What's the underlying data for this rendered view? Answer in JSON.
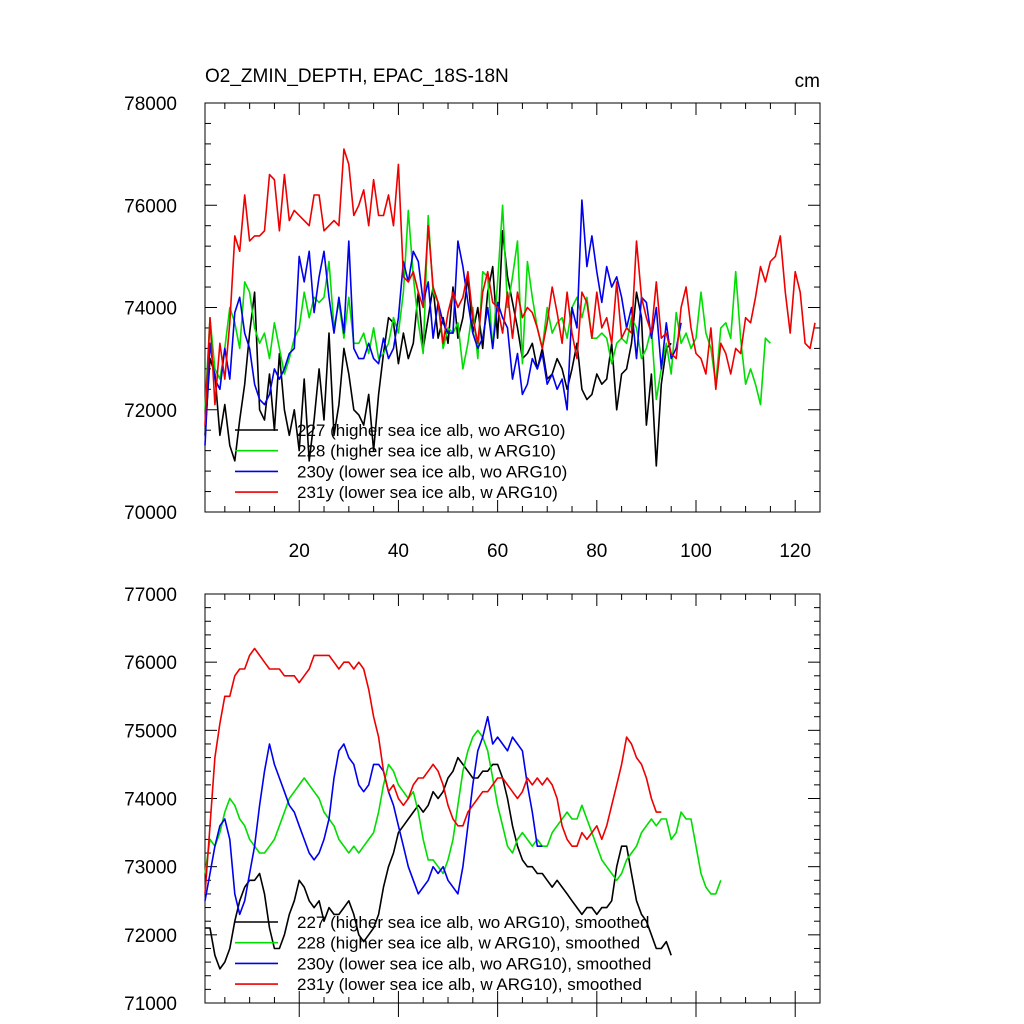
{
  "chart_data": [
    {
      "type": "line",
      "title": "O2_ZMIN_DEPTH, EPAC_18S-18N",
      "units": "cm",
      "xlim": [
        1,
        125
      ],
      "ylim": [
        70000,
        78000
      ],
      "x_ticks": [
        20,
        40,
        60,
        80,
        100,
        120
      ],
      "y_ticks": [
        70000,
        72000,
        74000,
        76000,
        78000
      ],
      "legend_position": "lower-left",
      "series": [
        {
          "name": "227 (higher sea ice alb, wo ARG10)",
          "color": "#000000",
          "values": [
            71500,
            73000,
            72700,
            71500,
            72100,
            71300,
            71000,
            71800,
            72500,
            73500,
            74300,
            72000,
            71800,
            72700,
            71600,
            73100,
            72000,
            71500,
            72000,
            71200,
            72600,
            71000,
            71800,
            72800,
            71800,
            73500,
            71500,
            72100,
            73200,
            72700,
            72000,
            71900,
            71700,
            72300,
            71200,
            72300,
            73100,
            73800,
            73700,
            72900,
            73500,
            73000,
            73300,
            74300,
            73200,
            73800,
            74400,
            73400,
            73800,
            73300,
            74400,
            73400,
            73800,
            74600,
            73500,
            74000,
            73200,
            74300,
            74800,
            73400,
            75500,
            74600,
            74100,
            73600,
            73000,
            73100,
            73300,
            72800,
            73200,
            72600,
            72700,
            73000,
            72800,
            72400,
            72800,
            73300,
            72400,
            72200,
            72300,
            72700,
            72500,
            72600,
            73300,
            72000,
            72700,
            72800,
            73300,
            74300,
            73800,
            71700,
            72700,
            70900,
            72500,
            73200,
            73300
          ]
        },
        {
          "name": "228 (higher sea ice alb, w ARG10)",
          "color": "#00dd00",
          "values": [
            72000,
            73800,
            72800,
            72600,
            73200,
            74000,
            73700,
            73200,
            74500,
            74300,
            73600,
            73300,
            73500,
            73000,
            73700,
            73200,
            72700,
            73000,
            73400,
            73600,
            74300,
            73800,
            74200,
            74100,
            74200,
            74900,
            73600,
            74100,
            73400,
            74200,
            73300,
            73300,
            73500,
            73100,
            73600,
            73000,
            73100,
            73300,
            73800,
            73500,
            74300,
            75900,
            74600,
            73700,
            73100,
            75800,
            74300,
            74100,
            73200,
            73600,
            73500,
            73700,
            72800,
            73300,
            74000,
            73000,
            74700,
            74600,
            73200,
            74500,
            76000,
            74000,
            74600,
            75300,
            72900,
            74900,
            74200,
            73600,
            73200,
            74000,
            73500,
            73700,
            73800,
            73400,
            74000,
            74200,
            73800,
            74200,
            73400,
            73400,
            73500,
            73400,
            72900,
            73300,
            73400,
            73300,
            73800,
            73600,
            73000,
            73200,
            73600,
            72200,
            72800,
            73300,
            72700,
            73900,
            73300,
            73500,
            73200,
            73400,
            74300,
            73500,
            73200,
            72500,
            73600,
            73700,
            73400,
            74700,
            73400,
            72500,
            72800,
            72500,
            72100,
            73400,
            73300
          ]
        },
        {
          "name": "230y (lower sea ice alb, wo ARG10)",
          "color": "#0000ee",
          "values": [
            71300,
            73300,
            72600,
            72400,
            73200,
            72600,
            73900,
            74200,
            73500,
            73200,
            72500,
            72200,
            72100,
            72300,
            72800,
            72600,
            72800,
            73100,
            73200,
            75000,
            74500,
            75100,
            73900,
            74600,
            75100,
            74200,
            73500,
            74200,
            73500,
            75300,
            73200,
            73000,
            73000,
            73300,
            73000,
            72900,
            73400,
            73000,
            73200,
            73800,
            74900,
            74500,
            75100,
            74900,
            74100,
            74500,
            73400,
            74100,
            73700,
            73500,
            73500,
            75300,
            74800,
            74100,
            73500,
            73200,
            73400,
            74000,
            73200,
            74100,
            73800,
            73600,
            72600,
            73100,
            72300,
            72500,
            73000,
            72800,
            73100,
            72500,
            72700,
            72400,
            72600,
            72000,
            74000,
            73600,
            76100,
            74800,
            75400,
            74700,
            74100,
            74800,
            74400,
            74600,
            74200,
            73600,
            74000,
            73000,
            74200,
            74100,
            73400,
            74000,
            72800,
            73700,
            73000,
            73200,
            73700
          ]
        },
        {
          "name": "231y (lower sea ice alb, w ARG10)",
          "color": "#ee0000",
          "values": [
            71700,
            73800,
            72100,
            73300,
            72600,
            73700,
            75400,
            75100,
            76200,
            75300,
            75400,
            75400,
            75500,
            76600,
            76500,
            75500,
            76600,
            75700,
            75900,
            75800,
            75700,
            75600,
            76200,
            76200,
            75500,
            75600,
            75700,
            75600,
            77100,
            76800,
            75800,
            76000,
            76300,
            75600,
            76500,
            75800,
            75800,
            76200,
            75600,
            76800,
            74600,
            74500,
            74700,
            74300,
            74000,
            75600,
            74400,
            74100,
            73300,
            73900,
            74300,
            74000,
            74200,
            74700,
            73800,
            73300,
            74300,
            74700,
            74100,
            74000,
            73500,
            74300,
            73400,
            74300,
            73800,
            74000,
            73900,
            73600,
            73200,
            73700,
            74400,
            73900,
            73300,
            74300,
            73500,
            73000,
            74300,
            74100,
            73400,
            74300,
            73600,
            73800,
            73300,
            74500,
            73400,
            73600,
            73500,
            75300,
            74200,
            73800,
            73500,
            74500,
            73400,
            73500,
            73100,
            73000,
            74000,
            74400,
            73600,
            73100,
            73000,
            72700,
            73600,
            72400,
            73300,
            73100,
            72700,
            73200,
            73100,
            73800,
            73700,
            74200,
            74800,
            74500,
            74900,
            75000,
            75400,
            74300,
            73500,
            74700,
            74300,
            73300,
            73200,
            73700
          ]
        }
      ]
    },
    {
      "type": "line",
      "title": "",
      "xlim": [
        1,
        125
      ],
      "ylim": [
        71000,
        77000
      ],
      "x_ticks": [],
      "y_ticks": [
        71000,
        72000,
        73000,
        74000,
        75000,
        76000,
        77000
      ],
      "legend_position": "lower-left",
      "series": [
        {
          "name": "227 (higher sea ice alb, wo ARG10), smoothed",
          "color": "#000000",
          "values": [
            72100,
            72100,
            71700,
            71500,
            71600,
            71800,
            72200,
            72500,
            72700,
            72800,
            72800,
            72900,
            72600,
            72100,
            71800,
            71800,
            72000,
            72300,
            72500,
            72800,
            72700,
            72500,
            72400,
            72500,
            72200,
            72400,
            72300,
            72300,
            72400,
            72500,
            72300,
            72000,
            71900,
            72000,
            72100,
            72300,
            72700,
            73000,
            73200,
            73500,
            73600,
            73700,
            73800,
            73900,
            73800,
            73900,
            74100,
            74000,
            74100,
            74300,
            74400,
            74600,
            74500,
            74400,
            74300,
            74300,
            74400,
            74400,
            74500,
            74500,
            74300,
            74000,
            73600,
            73300,
            73100,
            73000,
            73000,
            72900,
            72900,
            72800,
            72700,
            72800,
            72700,
            72600,
            72500,
            72400,
            72300,
            72400,
            72400,
            72300,
            72400,
            72400,
            72500,
            73000,
            73300,
            73300,
            72900,
            72500,
            72300,
            72200,
            72000,
            71800,
            71800,
            71900,
            71700
          ]
        },
        {
          "name": "228 (higher sea ice alb, w ARG10), smoothed",
          "color": "#00dd00",
          "values": [
            72900,
            73400,
            73300,
            73500,
            73800,
            74000,
            73900,
            73700,
            73600,
            73400,
            73300,
            73200,
            73200,
            73300,
            73400,
            73600,
            73800,
            74000,
            74100,
            74200,
            74300,
            74200,
            74100,
            74000,
            73800,
            73700,
            73600,
            73400,
            73300,
            73200,
            73300,
            73200,
            73300,
            73400,
            73500,
            73800,
            74200,
            74500,
            74400,
            74200,
            74100,
            74000,
            74100,
            73800,
            73400,
            73100,
            73100,
            73000,
            72900,
            73100,
            73400,
            73900,
            74400,
            74700,
            74900,
            75000,
            74900,
            74700,
            74300,
            73900,
            73600,
            73300,
            73200,
            73400,
            73500,
            73400,
            73300,
            73400,
            73300,
            73300,
            73500,
            73600,
            73700,
            73800,
            73700,
            73700,
            73900,
            73700,
            73500,
            73300,
            73100,
            73000,
            72900,
            72800,
            72900,
            73100,
            73200,
            73300,
            73500,
            73600,
            73700,
            73600,
            73700,
            73700,
            73400,
            73500,
            73800,
            73700,
            73700,
            73300,
            72900,
            72700,
            72600,
            72600,
            72800
          ]
        },
        {
          "name": "230y (lower sea ice alb, wo ARG10), smoothed",
          "color": "#0000ee",
          "values": [
            72500,
            72900,
            73300,
            73600,
            73700,
            73400,
            72600,
            72300,
            72500,
            72900,
            73300,
            73900,
            74400,
            74800,
            74500,
            74300,
            74100,
            73900,
            73800,
            73600,
            73400,
            73200,
            73100,
            73200,
            73400,
            73700,
            74300,
            74700,
            74800,
            74600,
            74500,
            74200,
            74100,
            74200,
            74500,
            74500,
            74400,
            74100,
            73900,
            73600,
            73300,
            73000,
            72800,
            72600,
            72700,
            72800,
            73000,
            72900,
            73000,
            72800,
            72700,
            72600,
            73000,
            73600,
            74200,
            74700,
            74900,
            75200,
            74800,
            74900,
            74800,
            74700,
            74900,
            74800,
            74700,
            74200,
            73800,
            73300,
            73300
          ]
        },
        {
          "name": "231y (lower sea ice alb, w ARG10), smoothed",
          "color": "#ee0000",
          "values": [
            72600,
            73600,
            74600,
            75100,
            75500,
            75500,
            75800,
            75900,
            75900,
            76100,
            76200,
            76100,
            76000,
            75900,
            75900,
            75900,
            75800,
            75800,
            75800,
            75700,
            75800,
            75900,
            76100,
            76100,
            76100,
            76100,
            76000,
            75900,
            76000,
            76000,
            75900,
            76000,
            75900,
            75600,
            75200,
            74900,
            74400,
            74100,
            74200,
            74000,
            73900,
            74000,
            74200,
            74300,
            74300,
            74400,
            74500,
            74400,
            74200,
            73900,
            73700,
            73600,
            73600,
            73800,
            73900,
            74000,
            74100,
            74100,
            74200,
            74300,
            74300,
            74200,
            74100,
            74000,
            74100,
            74300,
            74200,
            74300,
            74200,
            74300,
            74200,
            74000,
            73600,
            73400,
            73300,
            73300,
            73500,
            73400,
            73500,
            73600,
            73400,
            73600,
            73900,
            74200,
            74500,
            74900,
            74800,
            74600,
            74500,
            74300,
            74000,
            73800,
            73800
          ]
        }
      ]
    }
  ]
}
